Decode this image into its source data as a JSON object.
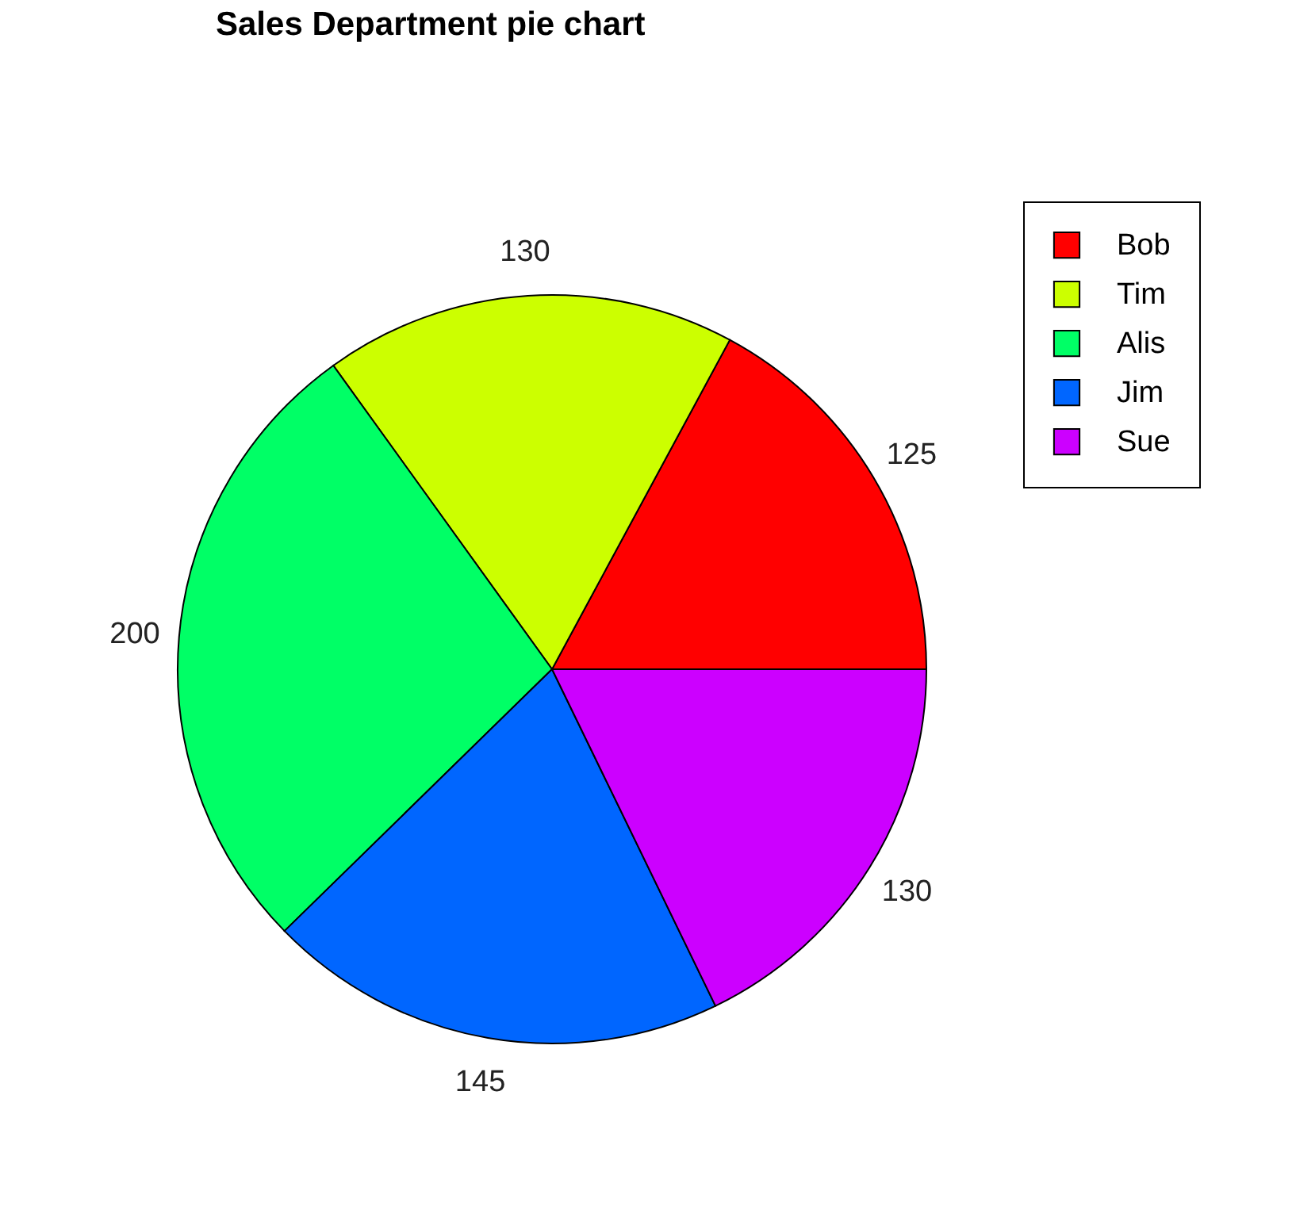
{
  "chart_data": {
    "type": "pie",
    "title": "Sales Department pie chart",
    "categories": [
      "Bob",
      "Tim",
      "Alis",
      "Jim",
      "Sue"
    ],
    "values": [
      125,
      130,
      200,
      145,
      130
    ],
    "colors": [
      "#ff0000",
      "#ccff00",
      "#00ff66",
      "#0066ff",
      "#cc00ff"
    ],
    "data_labels": true,
    "legend": "top right"
  }
}
